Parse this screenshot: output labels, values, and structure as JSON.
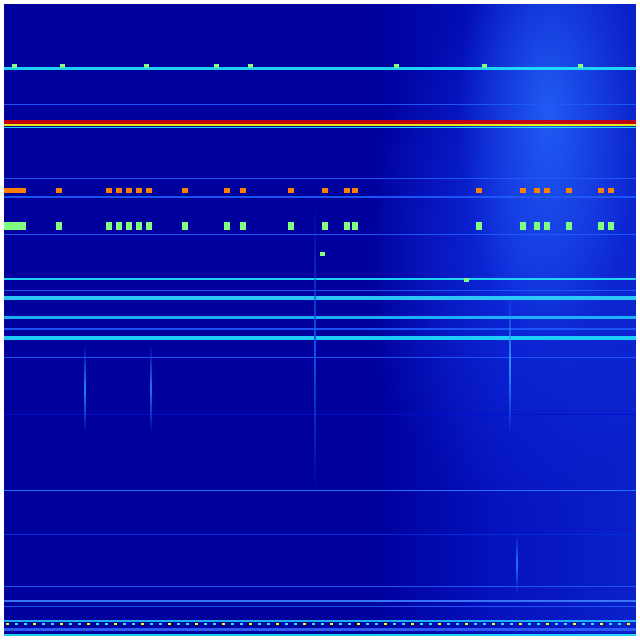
{
  "heatmap": {
    "colormap": "jet",
    "colors": {
      "background": "#00009c",
      "low": "#0000c8",
      "mid_blue": "#1e5cff",
      "cyan": "#20e8ff",
      "green": "#80ff80",
      "yellow": "#ffff00",
      "orange": "#ff8000",
      "red": "#d00000"
    }
  }
}
